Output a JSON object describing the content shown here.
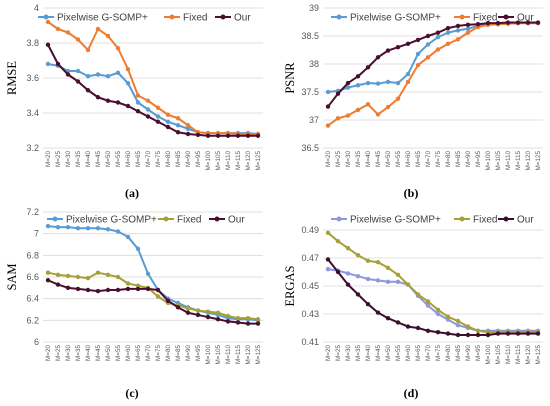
{
  "x_categories": [
    "M=20",
    "M=25",
    "M=30",
    "M=35",
    "M=40",
    "M=45",
    "M=50",
    "M=55",
    "M=60",
    "M=65",
    "M=70",
    "M=75",
    "M=80",
    "M=85",
    "M=90",
    "M=95",
    "M=100",
    "M=105",
    "M=110",
    "M=115",
    "M=120",
    "M=125"
  ],
  "colors": {
    "pixelwise": "#5b9bd5",
    "fixed_a": "#ed7d31",
    "fixed_b": "#a5a03a",
    "our": "#4a0f2f",
    "grid": "#d9d9d9",
    "text": "#595959"
  },
  "captions": [
    "(a)",
    "(b)",
    "(c)",
    "(d)"
  ],
  "chart_data": [
    {
      "type": "line",
      "ylabel": "RMSE",
      "ylim": [
        3.2,
        4.0
      ],
      "yticks": [
        "3.2",
        "3.4",
        "3.6",
        "3.8",
        "4"
      ],
      "legend_position": "top",
      "series": [
        {
          "name": "Pixelwise G-SOMP+",
          "color": "#5b9bd5",
          "values": [
            3.68,
            3.67,
            3.64,
            3.64,
            3.61,
            3.62,
            3.61,
            3.63,
            3.57,
            3.46,
            3.42,
            3.38,
            3.35,
            3.33,
            3.31,
            3.29,
            3.285,
            3.285,
            3.285,
            3.285,
            3.285,
            3.28
          ]
        },
        {
          "name": "Fixed",
          "color": "#ed7d31",
          "values": [
            3.92,
            3.88,
            3.86,
            3.82,
            3.76,
            3.88,
            3.84,
            3.77,
            3.65,
            3.5,
            3.47,
            3.43,
            3.39,
            3.37,
            3.33,
            3.29,
            3.285,
            3.285,
            3.285,
            3.28,
            3.28,
            3.28
          ]
        },
        {
          "name": "Our",
          "color": "#4a0f2f",
          "values": [
            3.79,
            3.68,
            3.62,
            3.58,
            3.53,
            3.49,
            3.47,
            3.46,
            3.44,
            3.41,
            3.38,
            3.35,
            3.32,
            3.29,
            3.28,
            3.275,
            3.27,
            3.27,
            3.27,
            3.27,
            3.27,
            3.27
          ]
        }
      ]
    },
    {
      "type": "line",
      "ylabel": "PSNR",
      "ylim": [
        36.5,
        39.0
      ],
      "yticks": [
        "36.5",
        "37",
        "37.5",
        "38",
        "38.5",
        "39"
      ],
      "legend_position": "top",
      "series": [
        {
          "name": "Pixelwise G-SOMP+",
          "color": "#5b9bd5",
          "values": [
            37.5,
            37.52,
            37.58,
            37.62,
            37.66,
            37.65,
            37.68,
            37.66,
            37.82,
            38.18,
            38.35,
            38.48,
            38.56,
            38.6,
            38.63,
            38.68,
            38.7,
            38.71,
            38.72,
            38.73,
            38.73,
            38.73
          ]
        },
        {
          "name": "Fixed",
          "color": "#ed7d31",
          "values": [
            36.9,
            37.03,
            37.08,
            37.18,
            37.28,
            37.1,
            37.23,
            37.38,
            37.68,
            37.98,
            38.12,
            38.26,
            38.36,
            38.44,
            38.56,
            38.66,
            38.7,
            38.71,
            38.72,
            38.73,
            38.73,
            38.73
          ]
        },
        {
          "name": "Our",
          "color": "#4a0f2f",
          "values": [
            37.24,
            37.47,
            37.66,
            37.78,
            37.94,
            38.12,
            38.24,
            38.3,
            38.36,
            38.43,
            38.5,
            38.56,
            38.64,
            38.68,
            38.7,
            38.71,
            38.73,
            38.73,
            38.74,
            38.74,
            38.74,
            38.74
          ]
        }
      ]
    },
    {
      "type": "line",
      "ylabel": "SAM",
      "ylim": [
        6.0,
        7.2
      ],
      "yticks": [
        "6",
        "6.2",
        "6.4",
        "6.6",
        "6.8",
        "7",
        "7.2"
      ],
      "legend_position": "top",
      "series": [
        {
          "name": "Pixelwise G-SOMP+",
          "color": "#5b9bd5",
          "values": [
            7.07,
            7.06,
            7.06,
            7.05,
            7.05,
            7.05,
            7.04,
            7.02,
            6.97,
            6.86,
            6.63,
            6.48,
            6.4,
            6.36,
            6.32,
            6.29,
            6.27,
            6.25,
            6.22,
            6.21,
            6.21,
            6.2
          ]
        },
        {
          "name": "Fixed",
          "color": "#a5a03a",
          "values": [
            6.64,
            6.62,
            6.61,
            6.6,
            6.59,
            6.64,
            6.62,
            6.6,
            6.54,
            6.52,
            6.5,
            6.42,
            6.36,
            6.34,
            6.31,
            6.29,
            6.28,
            6.27,
            6.24,
            6.22,
            6.22,
            6.21
          ]
        },
        {
          "name": "Our",
          "color": "#4a0f2f",
          "values": [
            6.57,
            6.53,
            6.5,
            6.49,
            6.48,
            6.47,
            6.48,
            6.48,
            6.49,
            6.49,
            6.49,
            6.48,
            6.38,
            6.32,
            6.27,
            6.25,
            6.23,
            6.21,
            6.19,
            6.18,
            6.17,
            6.17
          ]
        }
      ]
    },
    {
      "type": "line",
      "ylabel": "ERGAS",
      "ylim": [
        0.41,
        0.49
      ],
      "yticks": [
        "0.41",
        "0.43",
        "0.45",
        "0.47",
        "0.49"
      ],
      "legend_position": "top",
      "series": [
        {
          "name": "Pixelwise G-SOMP+",
          "color": "#8f97dd",
          "values": [
            0.462,
            0.461,
            0.459,
            0.457,
            0.455,
            0.454,
            0.453,
            0.453,
            0.451,
            0.443,
            0.436,
            0.43,
            0.426,
            0.422,
            0.42,
            0.418,
            0.418,
            0.418,
            0.418,
            0.418,
            0.418,
            0.418
          ]
        },
        {
          "name": "Fixed",
          "color": "#a5a03a",
          "values": [
            0.488,
            0.482,
            0.477,
            0.472,
            0.468,
            0.467,
            0.463,
            0.458,
            0.451,
            0.444,
            0.439,
            0.433,
            0.428,
            0.425,
            0.421,
            0.418,
            0.417,
            0.417,
            0.417,
            0.417,
            0.417,
            0.417
          ]
        },
        {
          "name": "Our",
          "color": "#3d0f2f",
          "values": [
            0.469,
            0.46,
            0.451,
            0.444,
            0.437,
            0.431,
            0.427,
            0.424,
            0.421,
            0.42,
            0.418,
            0.417,
            0.416,
            0.415,
            0.415,
            0.415,
            0.415,
            0.416,
            0.416,
            0.416,
            0.416,
            0.416
          ]
        }
      ]
    }
  ]
}
